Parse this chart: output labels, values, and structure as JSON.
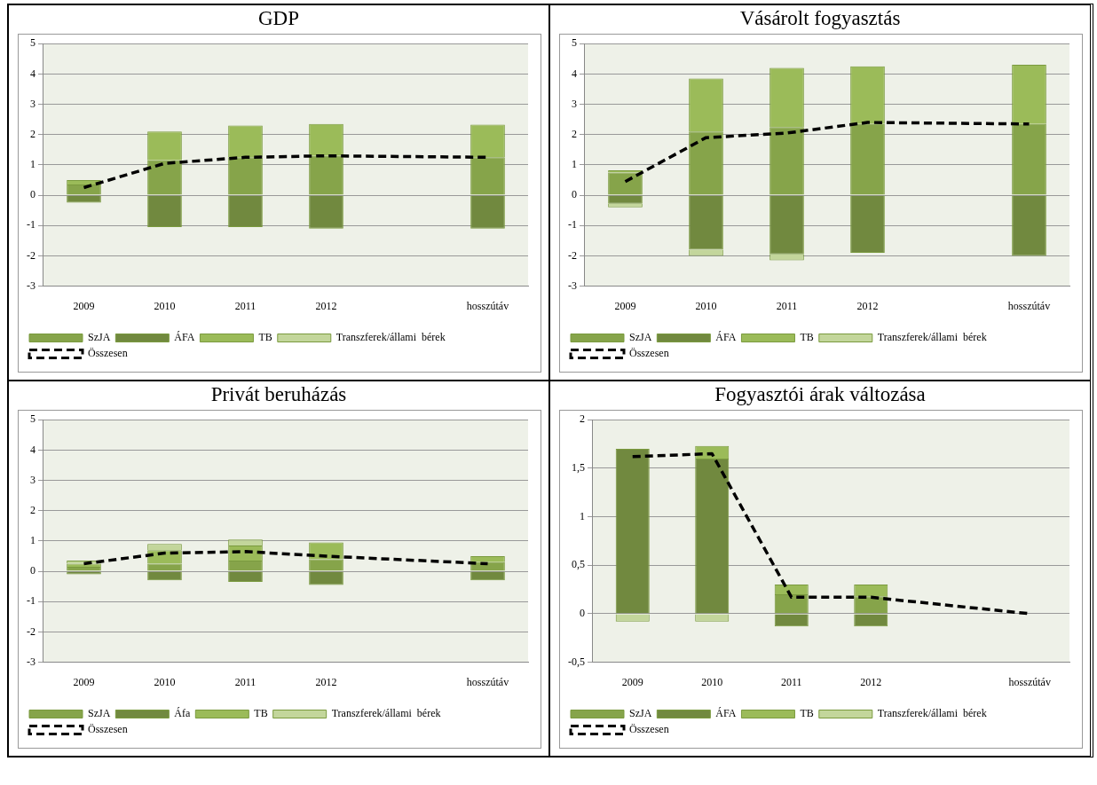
{
  "chart_data": [
    {
      "type": "bar",
      "title": "GDP",
      "categories": [
        "2009",
        "2010",
        "2011",
        "2012",
        null,
        "hosszútáv"
      ],
      "stacked": true,
      "ylim": [
        -3,
        5
      ],
      "yticks": [
        -3,
        -2,
        -1,
        0,
        1,
        2,
        3,
        4,
        5
      ],
      "grid": "y",
      "legend": "bottom",
      "marker": "none",
      "line_style": "dashed",
      "series": [
        {
          "name": "SzJA",
          "color": "#86a44a",
          "values": [
            0.35,
            1.15,
            1.25,
            1.3,
            null,
            1.25
          ]
        },
        {
          "name": "ÁFA",
          "color": "#71893f",
          "values": [
            -0.25,
            -1.05,
            -1.05,
            -1.1,
            null,
            -1.1
          ]
        },
        {
          "name": "TB",
          "color": "#9bbb59",
          "values": [
            0.15,
            0.95,
            1.05,
            1.05,
            null,
            1.08
          ]
        },
        {
          "name": "Transzferek/állami  bérek",
          "color": "#c3d69b",
          "values": [
            0,
            0,
            0,
            0,
            null,
            0
          ]
        },
        {
          "name": "Összesen",
          "type": "line",
          "color": "#000000",
          "values": [
            0.25,
            1.05,
            1.25,
            1.3,
            null,
            1.25
          ]
        }
      ]
    },
    {
      "type": "bar",
      "title": "Vásárolt fogyasztás",
      "categories": [
        "2009",
        "2010",
        "2011",
        "2012",
        null,
        "hosszútáv"
      ],
      "stacked": true,
      "ylim": [
        -3,
        5
      ],
      "yticks": [
        -3,
        -2,
        -1,
        0,
        1,
        2,
        3,
        4,
        5
      ],
      "grid": "y",
      "legend": "bottom",
      "marker": "none",
      "line_style": "dashed",
      "series": [
        {
          "name": "SzJA",
          "color": "#86a44a",
          "values": [
            0.75,
            2.1,
            2.25,
            2.35,
            null,
            2.35
          ]
        },
        {
          "name": "ÁFA",
          "color": "#71893f",
          "values": [
            -0.28,
            -1.8,
            -1.95,
            -1.9,
            null,
            -2.0
          ]
        },
        {
          "name": "TB",
          "color": "#9bbb59",
          "values": [
            0.07,
            1.75,
            1.95,
            1.9,
            null,
            1.95
          ]
        },
        {
          "name": "Transzferek/állami  bérek",
          "color": "#c3d69b",
          "values": [
            -0.12,
            -0.2,
            -0.2,
            0,
            null,
            0
          ]
        },
        {
          "name": "Összesen",
          "type": "line",
          "color": "#000000",
          "values": [
            0.45,
            1.9,
            2.05,
            2.4,
            null,
            2.35
          ]
        }
      ]
    },
    {
      "type": "bar",
      "title": "Privát beruházás",
      "categories": [
        "2009",
        "2010",
        "2011",
        "2012",
        null,
        "hosszútáv"
      ],
      "stacked": true,
      "ylim": [
        -3,
        5
      ],
      "yticks": [
        -3,
        -2,
        -1,
        0,
        1,
        2,
        3,
        4,
        5
      ],
      "grid": "y",
      "legend": "bottom",
      "marker": "none",
      "line_style": "dashed",
      "series": [
        {
          "name": "SzJA",
          "color": "#86a44a",
          "values": [
            0.15,
            0.25,
            0.35,
            0.4,
            null,
            0.3
          ]
        },
        {
          "name": "Áfa",
          "color": "#71893f",
          "values": [
            -0.1,
            -0.3,
            -0.35,
            -0.45,
            null,
            -0.3
          ]
        },
        {
          "name": "TB",
          "color": "#9bbb59",
          "values": [
            0.1,
            0.45,
            0.5,
            0.55,
            null,
            0.2
          ]
        },
        {
          "name": "Transzferek/állami  bérek",
          "color": "#c3d69b",
          "values": [
            0.1,
            0.2,
            0.2,
            0,
            null,
            0
          ]
        },
        {
          "name": "Összesen",
          "type": "line",
          "color": "#000000",
          "values": [
            0.25,
            0.6,
            0.65,
            0.5,
            null,
            0.25
          ]
        }
      ]
    },
    {
      "type": "bar",
      "title": "Fogyasztói árak változása",
      "categories": [
        "2009",
        "2010",
        "2011",
        "2012",
        null,
        "hosszútáv"
      ],
      "stacked": true,
      "ylim": [
        -0.5,
        2
      ],
      "yticks": [
        {
          "value": -0.5,
          "label": "-0,5"
        },
        0,
        {
          "value": 0.5,
          "label": "0,5"
        },
        1,
        {
          "value": 1.5,
          "label": "1,5"
        },
        2
      ],
      "grid": "y",
      "legend": "bottom",
      "marker": "none",
      "line_style": "dashed",
      "series": [
        {
          "name": "SzJA",
          "color": "#86a44a",
          "values": [
            0,
            0,
            0.2,
            0.18,
            null,
            null
          ]
        },
        {
          "name": "ÁFA",
          "color": "#71893f",
          "values": [
            1.7,
            1.6,
            -0.13,
            -0.13,
            null,
            null
          ]
        },
        {
          "name": "TB",
          "color": "#9bbb59",
          "values": [
            0,
            0.13,
            0.1,
            0.12,
            null,
            null
          ]
        },
        {
          "name": "Transzferek/állami  bérek",
          "color": "#c3d69b",
          "values": [
            -0.08,
            -0.08,
            0,
            0,
            null,
            null
          ]
        },
        {
          "name": "Összesen",
          "type": "line",
          "color": "#000000",
          "values": [
            1.62,
            1.65,
            0.17,
            0.17,
            null,
            0
          ]
        }
      ]
    }
  ]
}
